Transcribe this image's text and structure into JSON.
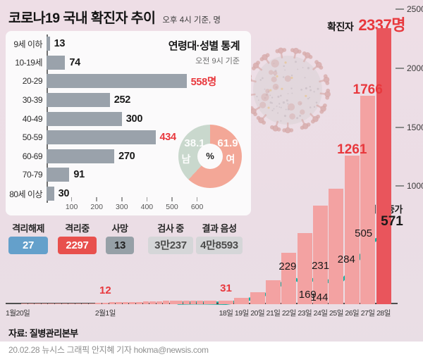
{
  "header": {
    "title": "코로나19 국내 확진자 추이",
    "subtitle": "오후 4시 기준, 명"
  },
  "chart_data": [
    {
      "type": "bar",
      "orientation": "horizontal",
      "title": "연령대·성별 통계",
      "subtitle": "오전 9시 기준",
      "categories": [
        "9세 이하",
        "10-19세",
        "20-29",
        "30-39",
        "40-49",
        "50-59",
        "60-69",
        "70-79",
        "80세 이상"
      ],
      "values": [
        13,
        74,
        558,
        252,
        300,
        434,
        270,
        91,
        30
      ],
      "value_labels": [
        "13",
        "74",
        "558명",
        "252",
        "300",
        "434",
        "270",
        "91",
        "30"
      ],
      "highlighted": [
        false,
        false,
        true,
        false,
        false,
        true,
        false,
        false,
        false
      ],
      "xticks": [
        100,
        200,
        300,
        400,
        500,
        600
      ],
      "xlim": [
        0,
        650
      ],
      "grid": false
    },
    {
      "type": "pie",
      "donut": true,
      "center_label": "%",
      "slices": [
        {
          "label": "여",
          "value": 61.9
        },
        {
          "label": "남",
          "value": 38.1
        }
      ]
    },
    {
      "type": "bar",
      "overlay": "line",
      "overlay_line_label": "전일대비 증가",
      "ylim": [
        0,
        2500
      ],
      "yticks": [
        2500,
        2000,
        1500,
        1000
      ],
      "early_section": {
        "axis_labels": [
          "1월20일",
          "2월1일"
        ],
        "cumulative": [
          1,
          1,
          1,
          1,
          2,
          2,
          3,
          4,
          4,
          4,
          6,
          11,
          12,
          15,
          15,
          16,
          18,
          19,
          23,
          24,
          24,
          27,
          27,
          28,
          28,
          28,
          28,
          29,
          30
        ]
      },
      "daily_section": {
        "dates": [
          "18일",
          "19일",
          "20일",
          "21일",
          "22일",
          "23일",
          "24일",
          "25일",
          "26일",
          "27일",
          "28일"
        ],
        "cumulative": [
          31,
          51,
          104,
          204,
          433,
          602,
          833,
          977,
          1261,
          1766,
          2337
        ],
        "daily_increase": [
          1,
          20,
          53,
          100,
          229,
          169,
          231,
          144,
          284,
          505,
          571
        ]
      },
      "bar_labels": [
        {
          "text": "12",
          "section": "early",
          "index": 12,
          "size": "sm"
        },
        {
          "text": "31",
          "section": "daily",
          "index": 0,
          "size": "sm"
        },
        {
          "text": "1261",
          "section": "daily",
          "index": 8,
          "size": "lg"
        },
        {
          "text": "1766",
          "section": "daily",
          "index": 9,
          "size": "lg"
        },
        {
          "text": "2337명",
          "section": "daily",
          "index": 10,
          "headline": true,
          "prefix": "확진자"
        }
      ],
      "line_labels": [
        {
          "text": "229",
          "index": 4,
          "pos": "above"
        },
        {
          "text": "169",
          "index": 5,
          "pos": "below"
        },
        {
          "text": "231",
          "index": 6,
          "pos": "above"
        },
        {
          "text": "144",
          "index": 7,
          "pos": "below"
        },
        {
          "text": "284",
          "index": 8,
          "pos": "above"
        },
        {
          "text": "505",
          "index": 9,
          "pos": "above"
        },
        {
          "text": "571",
          "index": 10,
          "pos": "above",
          "emphasis": true
        }
      ]
    }
  ],
  "status_boxes": [
    {
      "label": "격리해제",
      "value": "27",
      "style": "blue"
    },
    {
      "label": "격리중",
      "value": "2297",
      "style": "red"
    },
    {
      "label": "사망",
      "value": "13",
      "style": "dark"
    },
    {
      "label": "검사 중",
      "value": "3만237",
      "style": "light"
    },
    {
      "label": "결과 음성",
      "value": "4만8593",
      "style": "light"
    }
  ],
  "source": "자료: 질병관리본부",
  "credit": "20.02.28 뉴시스 그래픽 안지혜 기자 hokma@newsis.com",
  "colors": {
    "background_top": "#eedee6",
    "background_bottom": "#e9dee5",
    "panel": "#fbfafb",
    "age_bar": "#9aa2ab",
    "accent_red": "#e8383d",
    "bar_pink": "#f3a2a2",
    "bar_dark_red": "#e9555c",
    "line_teal": "#12b2a3",
    "donut_female": "#f3a797",
    "donut_male": "#c9d8cd",
    "status_blue": "#64a0cb",
    "status_red": "#e8504d",
    "status_dark_gray": "#96a0a7",
    "status_light_gray": "#d5d6d8",
    "footer_bg": "#ffffff"
  }
}
